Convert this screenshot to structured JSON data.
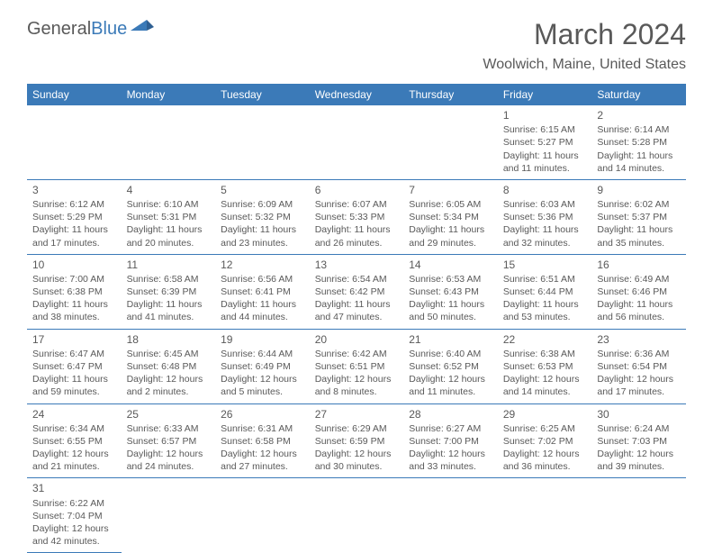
{
  "brand": {
    "part1": "General",
    "part2": "Blue"
  },
  "title": "March 2024",
  "location": "Woolwich, Maine, United States",
  "colors": {
    "accent": "#3b7ab8",
    "text": "#595959",
    "background": "#ffffff",
    "header_text": "#ffffff"
  },
  "weekdays": [
    "Sunday",
    "Monday",
    "Tuesday",
    "Wednesday",
    "Thursday",
    "Friday",
    "Saturday"
  ],
  "calendar": {
    "type": "table",
    "month": 3,
    "year": 2024,
    "first_weekday_index": 5,
    "days": [
      {
        "n": 1,
        "sunrise": "6:15 AM",
        "sunset": "5:27 PM",
        "daylight": "11 hours and 11 minutes."
      },
      {
        "n": 2,
        "sunrise": "6:14 AM",
        "sunset": "5:28 PM",
        "daylight": "11 hours and 14 minutes."
      },
      {
        "n": 3,
        "sunrise": "6:12 AM",
        "sunset": "5:29 PM",
        "daylight": "11 hours and 17 minutes."
      },
      {
        "n": 4,
        "sunrise": "6:10 AM",
        "sunset": "5:31 PM",
        "daylight": "11 hours and 20 minutes."
      },
      {
        "n": 5,
        "sunrise": "6:09 AM",
        "sunset": "5:32 PM",
        "daylight": "11 hours and 23 minutes."
      },
      {
        "n": 6,
        "sunrise": "6:07 AM",
        "sunset": "5:33 PM",
        "daylight": "11 hours and 26 minutes."
      },
      {
        "n": 7,
        "sunrise": "6:05 AM",
        "sunset": "5:34 PM",
        "daylight": "11 hours and 29 minutes."
      },
      {
        "n": 8,
        "sunrise": "6:03 AM",
        "sunset": "5:36 PM",
        "daylight": "11 hours and 32 minutes."
      },
      {
        "n": 9,
        "sunrise": "6:02 AM",
        "sunset": "5:37 PM",
        "daylight": "11 hours and 35 minutes."
      },
      {
        "n": 10,
        "sunrise": "7:00 AM",
        "sunset": "6:38 PM",
        "daylight": "11 hours and 38 minutes."
      },
      {
        "n": 11,
        "sunrise": "6:58 AM",
        "sunset": "6:39 PM",
        "daylight": "11 hours and 41 minutes."
      },
      {
        "n": 12,
        "sunrise": "6:56 AM",
        "sunset": "6:41 PM",
        "daylight": "11 hours and 44 minutes."
      },
      {
        "n": 13,
        "sunrise": "6:54 AM",
        "sunset": "6:42 PM",
        "daylight": "11 hours and 47 minutes."
      },
      {
        "n": 14,
        "sunrise": "6:53 AM",
        "sunset": "6:43 PM",
        "daylight": "11 hours and 50 minutes."
      },
      {
        "n": 15,
        "sunrise": "6:51 AM",
        "sunset": "6:44 PM",
        "daylight": "11 hours and 53 minutes."
      },
      {
        "n": 16,
        "sunrise": "6:49 AM",
        "sunset": "6:46 PM",
        "daylight": "11 hours and 56 minutes."
      },
      {
        "n": 17,
        "sunrise": "6:47 AM",
        "sunset": "6:47 PM",
        "daylight": "11 hours and 59 minutes."
      },
      {
        "n": 18,
        "sunrise": "6:45 AM",
        "sunset": "6:48 PM",
        "daylight": "12 hours and 2 minutes."
      },
      {
        "n": 19,
        "sunrise": "6:44 AM",
        "sunset": "6:49 PM",
        "daylight": "12 hours and 5 minutes."
      },
      {
        "n": 20,
        "sunrise": "6:42 AM",
        "sunset": "6:51 PM",
        "daylight": "12 hours and 8 minutes."
      },
      {
        "n": 21,
        "sunrise": "6:40 AM",
        "sunset": "6:52 PM",
        "daylight": "12 hours and 11 minutes."
      },
      {
        "n": 22,
        "sunrise": "6:38 AM",
        "sunset": "6:53 PM",
        "daylight": "12 hours and 14 minutes."
      },
      {
        "n": 23,
        "sunrise": "6:36 AM",
        "sunset": "6:54 PM",
        "daylight": "12 hours and 17 minutes."
      },
      {
        "n": 24,
        "sunrise": "6:34 AM",
        "sunset": "6:55 PM",
        "daylight": "12 hours and 21 minutes."
      },
      {
        "n": 25,
        "sunrise": "6:33 AM",
        "sunset": "6:57 PM",
        "daylight": "12 hours and 24 minutes."
      },
      {
        "n": 26,
        "sunrise": "6:31 AM",
        "sunset": "6:58 PM",
        "daylight": "12 hours and 27 minutes."
      },
      {
        "n": 27,
        "sunrise": "6:29 AM",
        "sunset": "6:59 PM",
        "daylight": "12 hours and 30 minutes."
      },
      {
        "n": 28,
        "sunrise": "6:27 AM",
        "sunset": "7:00 PM",
        "daylight": "12 hours and 33 minutes."
      },
      {
        "n": 29,
        "sunrise": "6:25 AM",
        "sunset": "7:02 PM",
        "daylight": "12 hours and 36 minutes."
      },
      {
        "n": 30,
        "sunrise": "6:24 AM",
        "sunset": "7:03 PM",
        "daylight": "12 hours and 39 minutes."
      },
      {
        "n": 31,
        "sunrise": "6:22 AM",
        "sunset": "7:04 PM",
        "daylight": "12 hours and 42 minutes."
      }
    ],
    "labels": {
      "sunrise": "Sunrise:",
      "sunset": "Sunset:",
      "daylight": "Daylight:"
    }
  }
}
